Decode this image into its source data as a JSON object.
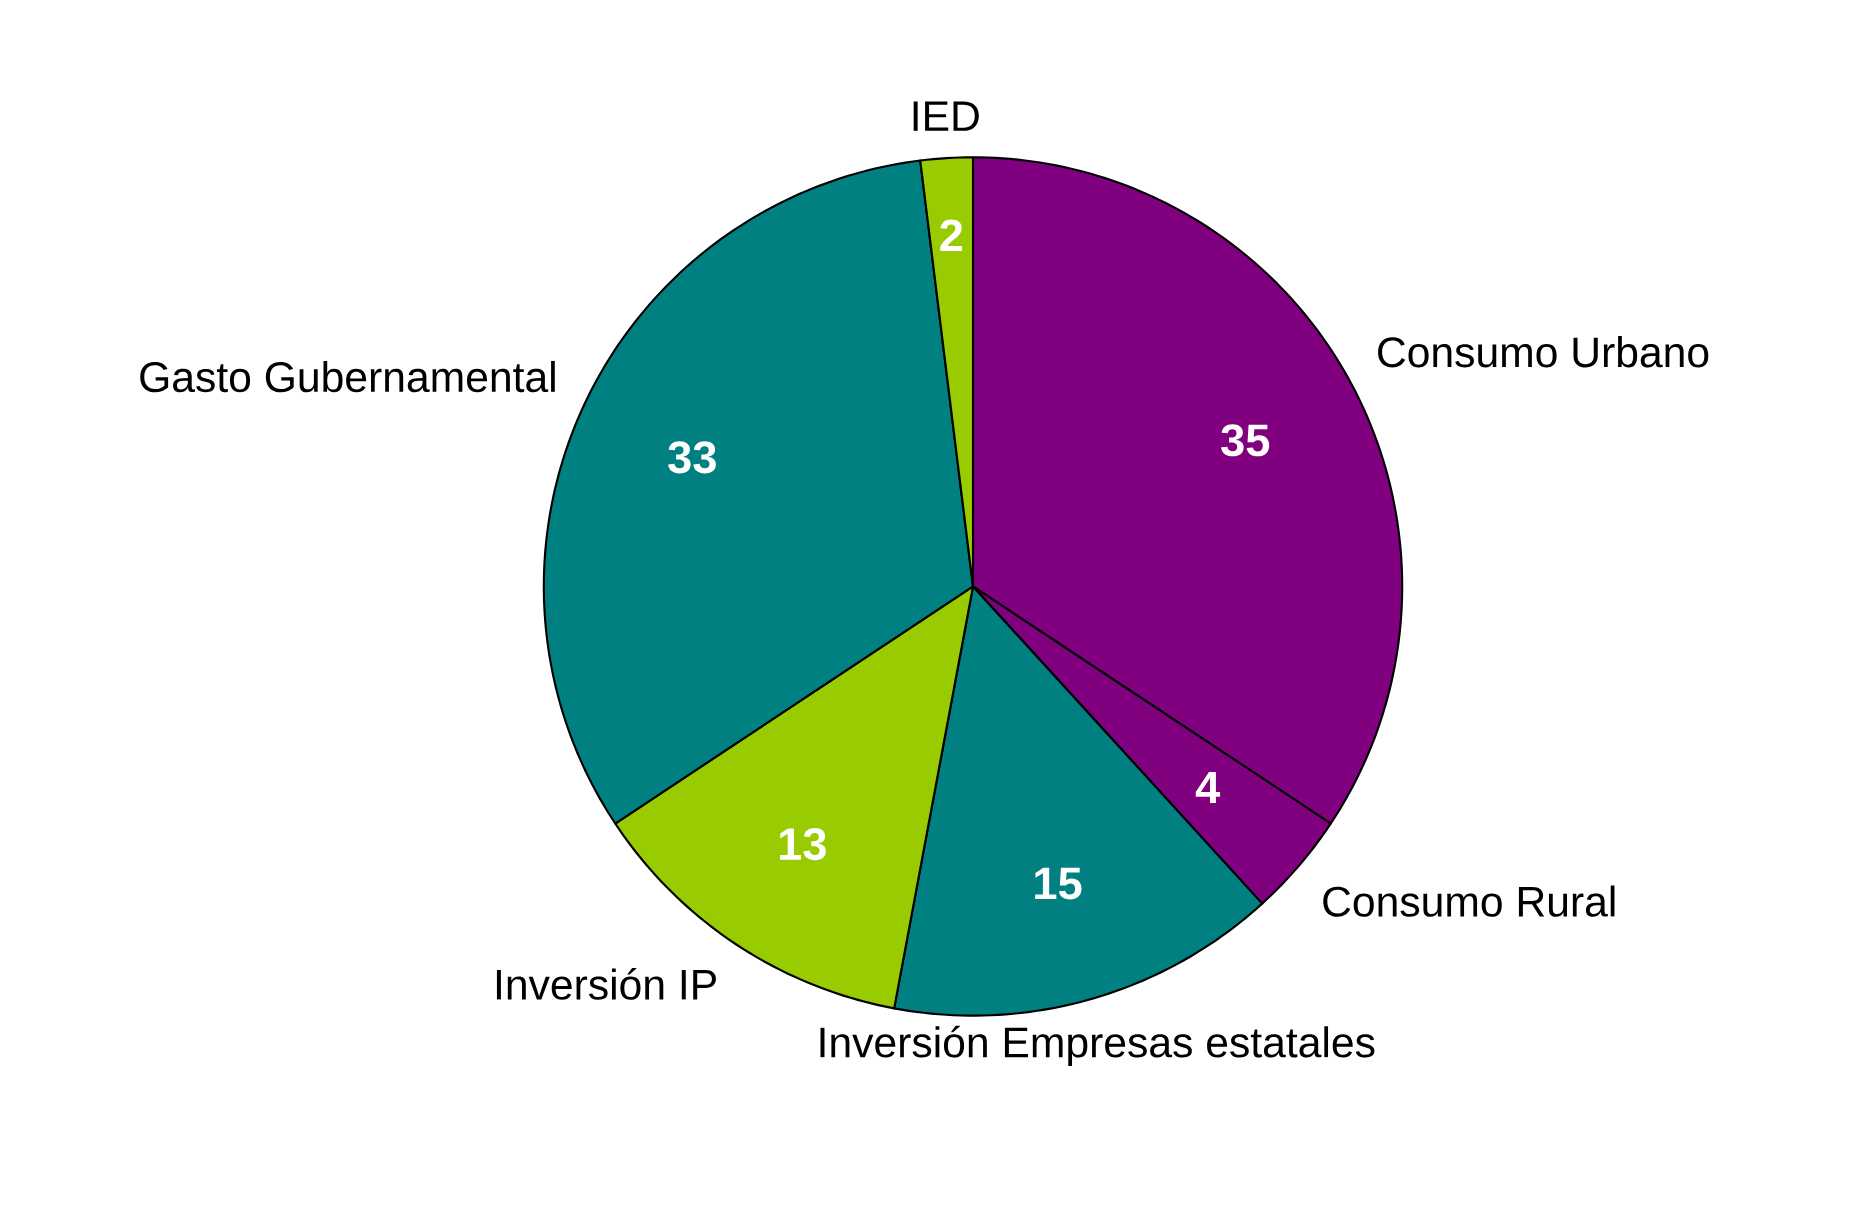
{
  "chart_data": {
    "type": "pie",
    "categories": [
      "Consumo Urbano",
      "Consumo Rural",
      "Inversión Empresas estatales",
      "Inversión IP",
      "Gasto Gubernamental",
      "IED"
    ],
    "values": [
      35,
      4,
      15,
      13,
      33,
      2
    ],
    "colors": [
      "#800080",
      "#800080",
      "#008080",
      "#99cc00",
      "#008080",
      "#99cc00"
    ],
    "data_labels": true
  }
}
